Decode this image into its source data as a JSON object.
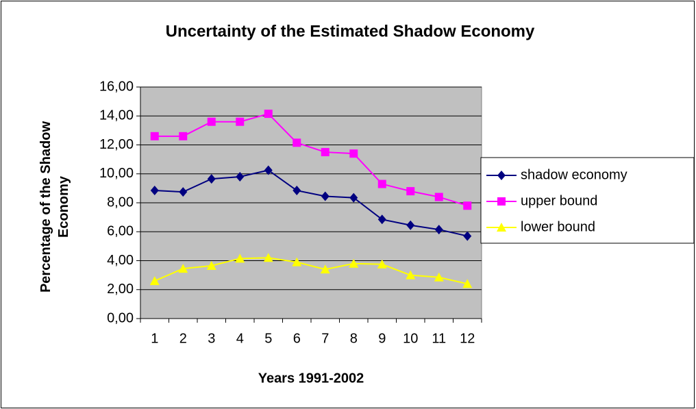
{
  "chart_data": {
    "type": "line",
    "title": "Uncertainty of the Estimated Shadow Economy",
    "xlabel": "Years 1991-2002",
    "ylabel": "Percentage of the Shadow Economy",
    "categories": [
      "1",
      "2",
      "3",
      "4",
      "5",
      "6",
      "7",
      "8",
      "9",
      "10",
      "11",
      "12"
    ],
    "series": [
      {
        "name": "shadow economy",
        "color": "#000080",
        "marker": "diamond",
        "values": [
          8.85,
          8.75,
          9.65,
          9.8,
          10.25,
          8.85,
          8.45,
          8.35,
          6.85,
          6.45,
          6.15,
          5.7
        ]
      },
      {
        "name": "upper bound",
        "color": "#ff00ff",
        "marker": "square",
        "values": [
          12.6,
          12.6,
          13.6,
          13.6,
          14.15,
          12.15,
          11.5,
          11.4,
          9.3,
          8.8,
          8.4,
          7.8
        ]
      },
      {
        "name": "lower bound",
        "color": "#ffff00",
        "marker": "triangle",
        "values": [
          2.6,
          3.45,
          3.65,
          4.15,
          4.2,
          3.9,
          3.4,
          3.8,
          3.75,
          3.0,
          2.85,
          2.4
        ]
      }
    ],
    "ylim": [
      0,
      16
    ],
    "yticks": [
      {
        "value": 0,
        "label": "0,00"
      },
      {
        "value": 2,
        "label": "2,00"
      },
      {
        "value": 4,
        "label": "4,00"
      },
      {
        "value": 6,
        "label": "6,00"
      },
      {
        "value": 8,
        "label": "8,00"
      },
      {
        "value": 10,
        "label": "10,00"
      },
      {
        "value": 12,
        "label": "12,00"
      },
      {
        "value": 14,
        "label": "14,00"
      },
      {
        "value": 16,
        "label": "16,00"
      }
    ],
    "grid": true,
    "plot_background": "#c0c0c0",
    "legend": "right"
  }
}
